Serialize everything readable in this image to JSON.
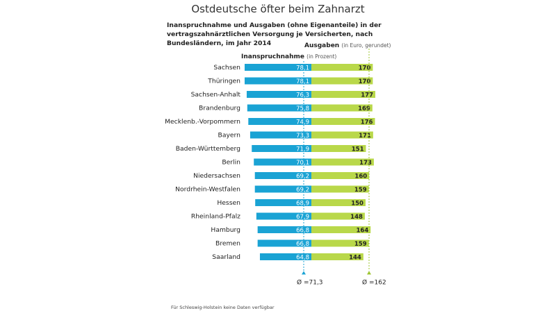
{
  "title": "Ostdeutsche öfter beim Zahnarzt",
  "subtitle": "Inanspruchnahme und Ausgaben (ohne Eigenanteile) in der vertragszahnärztlichen Versorgung je Versicherten, nach Bundesländern, im Jahr 2014",
  "legend": {
    "spending_label": "Ausgaben",
    "spending_note": "(in Euro, gerundet)",
    "usage_label": "Inanspruchnahme",
    "usage_note": "(in Prozent)"
  },
  "footnote": "Für Schleswig-Holstein keine Daten verfügbar",
  "colors": {
    "usage_bar": "#1aa3d4",
    "spending_bar": "#b9d84a",
    "avg_usage": "#1aa3d4",
    "avg_spending": "#9bc42e"
  },
  "chart_data": {
    "type": "bar",
    "orientation": "horizontal",
    "categories": [
      "Sachsen",
      "Thüringen",
      "Sachsen-Anhalt",
      "Brandenburg",
      "Mecklenb.-Vorpommern",
      "Bayern",
      "Baden-Württemberg",
      "Berlin",
      "Niedersachsen",
      "Nordrhein-Westfalen",
      "Hessen",
      "Rheinland-Pfalz",
      "Hamburg",
      "Bremen",
      "Saarland"
    ],
    "series": [
      {
        "name": "Inanspruchnahme",
        "unit": "Prozent",
        "values": [
          78.1,
          78.1,
          76.3,
          75.8,
          74.9,
          73.3,
          71.9,
          70.1,
          69.2,
          69.2,
          68.9,
          67.9,
          66.8,
          66.8,
          64.8
        ],
        "labels": [
          "78,1",
          "78,1",
          "76,3",
          "75,8",
          "74,9",
          "73,3",
          "71,9",
          "70,1",
          "69,2",
          "69,2",
          "68,9",
          "67,9",
          "66,8",
          "66,8",
          "64,8"
        ],
        "average": 71.3,
        "average_label": "Ø =71,3"
      },
      {
        "name": "Ausgaben",
        "unit": "Euro",
        "values": [
          170,
          170,
          177,
          169,
          176,
          171,
          151,
          173,
          160,
          159,
          150,
          148,
          164,
          159,
          144
        ],
        "labels": [
          "170",
          "170",
          "177",
          "169",
          "176",
          "171",
          "151",
          "173",
          "160",
          "159",
          "150",
          "148",
          "164",
          "159",
          "144"
        ],
        "average": 162,
        "average_label": "Ø =162"
      }
    ]
  }
}
